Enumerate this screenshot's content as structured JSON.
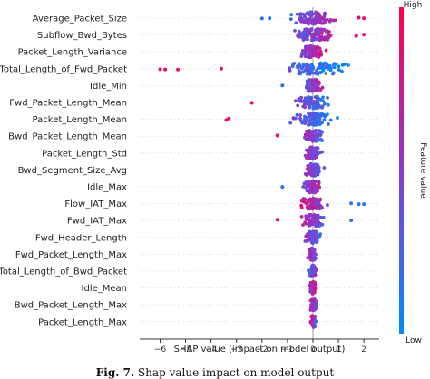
{
  "chart_data": {
    "type": "scatter",
    "subtype": "shap-beeswarm",
    "xlabel": "SHAP value (impact on model output)",
    "xlim": [
      -6.8,
      2.6
    ],
    "x_ticks": [
      -6,
      -5,
      -4,
      -3,
      -2,
      -1,
      0,
      1,
      2
    ],
    "zero_line": true,
    "colorbar": {
      "label": "Feature value",
      "high_label": "High",
      "low_label": "Low",
      "low_color": "#008bfb",
      "high_color": "#ff0052"
    },
    "features": [
      {
        "name": "Average_Packet_Size",
        "min": -2.1,
        "max": 2.0,
        "high_side": "positive",
        "outliers": [
          -2.0,
          -1.7,
          1.8,
          2.0
        ]
      },
      {
        "name": "Subflow_Bwd_Bytes",
        "min": -2.0,
        "max": 2.0,
        "high_side": "positive",
        "outliers": [
          1.7,
          2.0
        ]
      },
      {
        "name": "Packet_Length_Variance",
        "min": -1.5,
        "max": 1.1,
        "high_side": "positive",
        "outliers": []
      },
      {
        "name": "Total_Length_of_Fwd_Packet",
        "min": -6.0,
        "max": 1.4,
        "high_side": "negative",
        "outliers": [
          -6.0,
          -5.8,
          -5.3,
          -3.6
        ]
      },
      {
        "name": "Idle_Min",
        "min": -1.2,
        "max": 1.1,
        "high_side": "positive",
        "outliers": [
          -1.2
        ]
      },
      {
        "name": "Fwd_Packet_Length_Mean",
        "min": -2.4,
        "max": 1.0,
        "high_side": "negative",
        "outliers": [
          -2.4
        ]
      },
      {
        "name": "Packet_Length_Mean",
        "min": -3.4,
        "max": 1.0,
        "high_side": "negative",
        "outliers": [
          -3.4,
          -3.3
        ]
      },
      {
        "name": "Bwd_Packet_Length_Mean",
        "min": -1.4,
        "max": 1.0,
        "high_side": "negative",
        "outliers": [
          -1.4
        ]
      },
      {
        "name": "Packet_Length_Std",
        "min": -1.0,
        "max": 0.9,
        "high_side": "negative",
        "outliers": []
      },
      {
        "name": "Bwd_Segment_Size_Avg",
        "min": -1.1,
        "max": 0.8,
        "high_side": "negative",
        "outliers": []
      },
      {
        "name": "Idle_Max",
        "min": -1.2,
        "max": 1.0,
        "high_side": "positive",
        "outliers": [
          -1.2
        ]
      },
      {
        "name": "Flow_IAT_Max",
        "min": -1.0,
        "max": 2.0,
        "high_side": "negative",
        "outliers": [
          1.5,
          1.8,
          2.0
        ]
      },
      {
        "name": "Fwd_IAT_Max",
        "min": -1.4,
        "max": 1.5,
        "high_side": "negative",
        "outliers": [
          -1.4,
          1.5
        ]
      },
      {
        "name": "Fwd_Header_Length",
        "min": -1.0,
        "max": 0.7,
        "high_side": "negative",
        "outliers": []
      },
      {
        "name": "Fwd_Packet_Length_Max",
        "min": -0.5,
        "max": 0.5,
        "high_side": "negative",
        "outliers": []
      },
      {
        "name": "Total_Length_of_Bwd_Packet",
        "min": -0.3,
        "max": 0.4,
        "high_side": "positive",
        "outliers": []
      },
      {
        "name": "Idle_Mean",
        "min": -0.4,
        "max": 0.2,
        "high_side": "positive",
        "outliers": []
      },
      {
        "name": "Bwd_Packet_Length_Max",
        "min": -0.2,
        "max": 0.3,
        "high_side": "negative",
        "outliers": []
      },
      {
        "name": "Packet_Length_Max",
        "min": -0.1,
        "max": 0.2,
        "high_side": "negative",
        "outliers": []
      }
    ]
  },
  "caption": {
    "prefix": "Fig. 7.",
    "text": "Shap value impact on model output"
  }
}
